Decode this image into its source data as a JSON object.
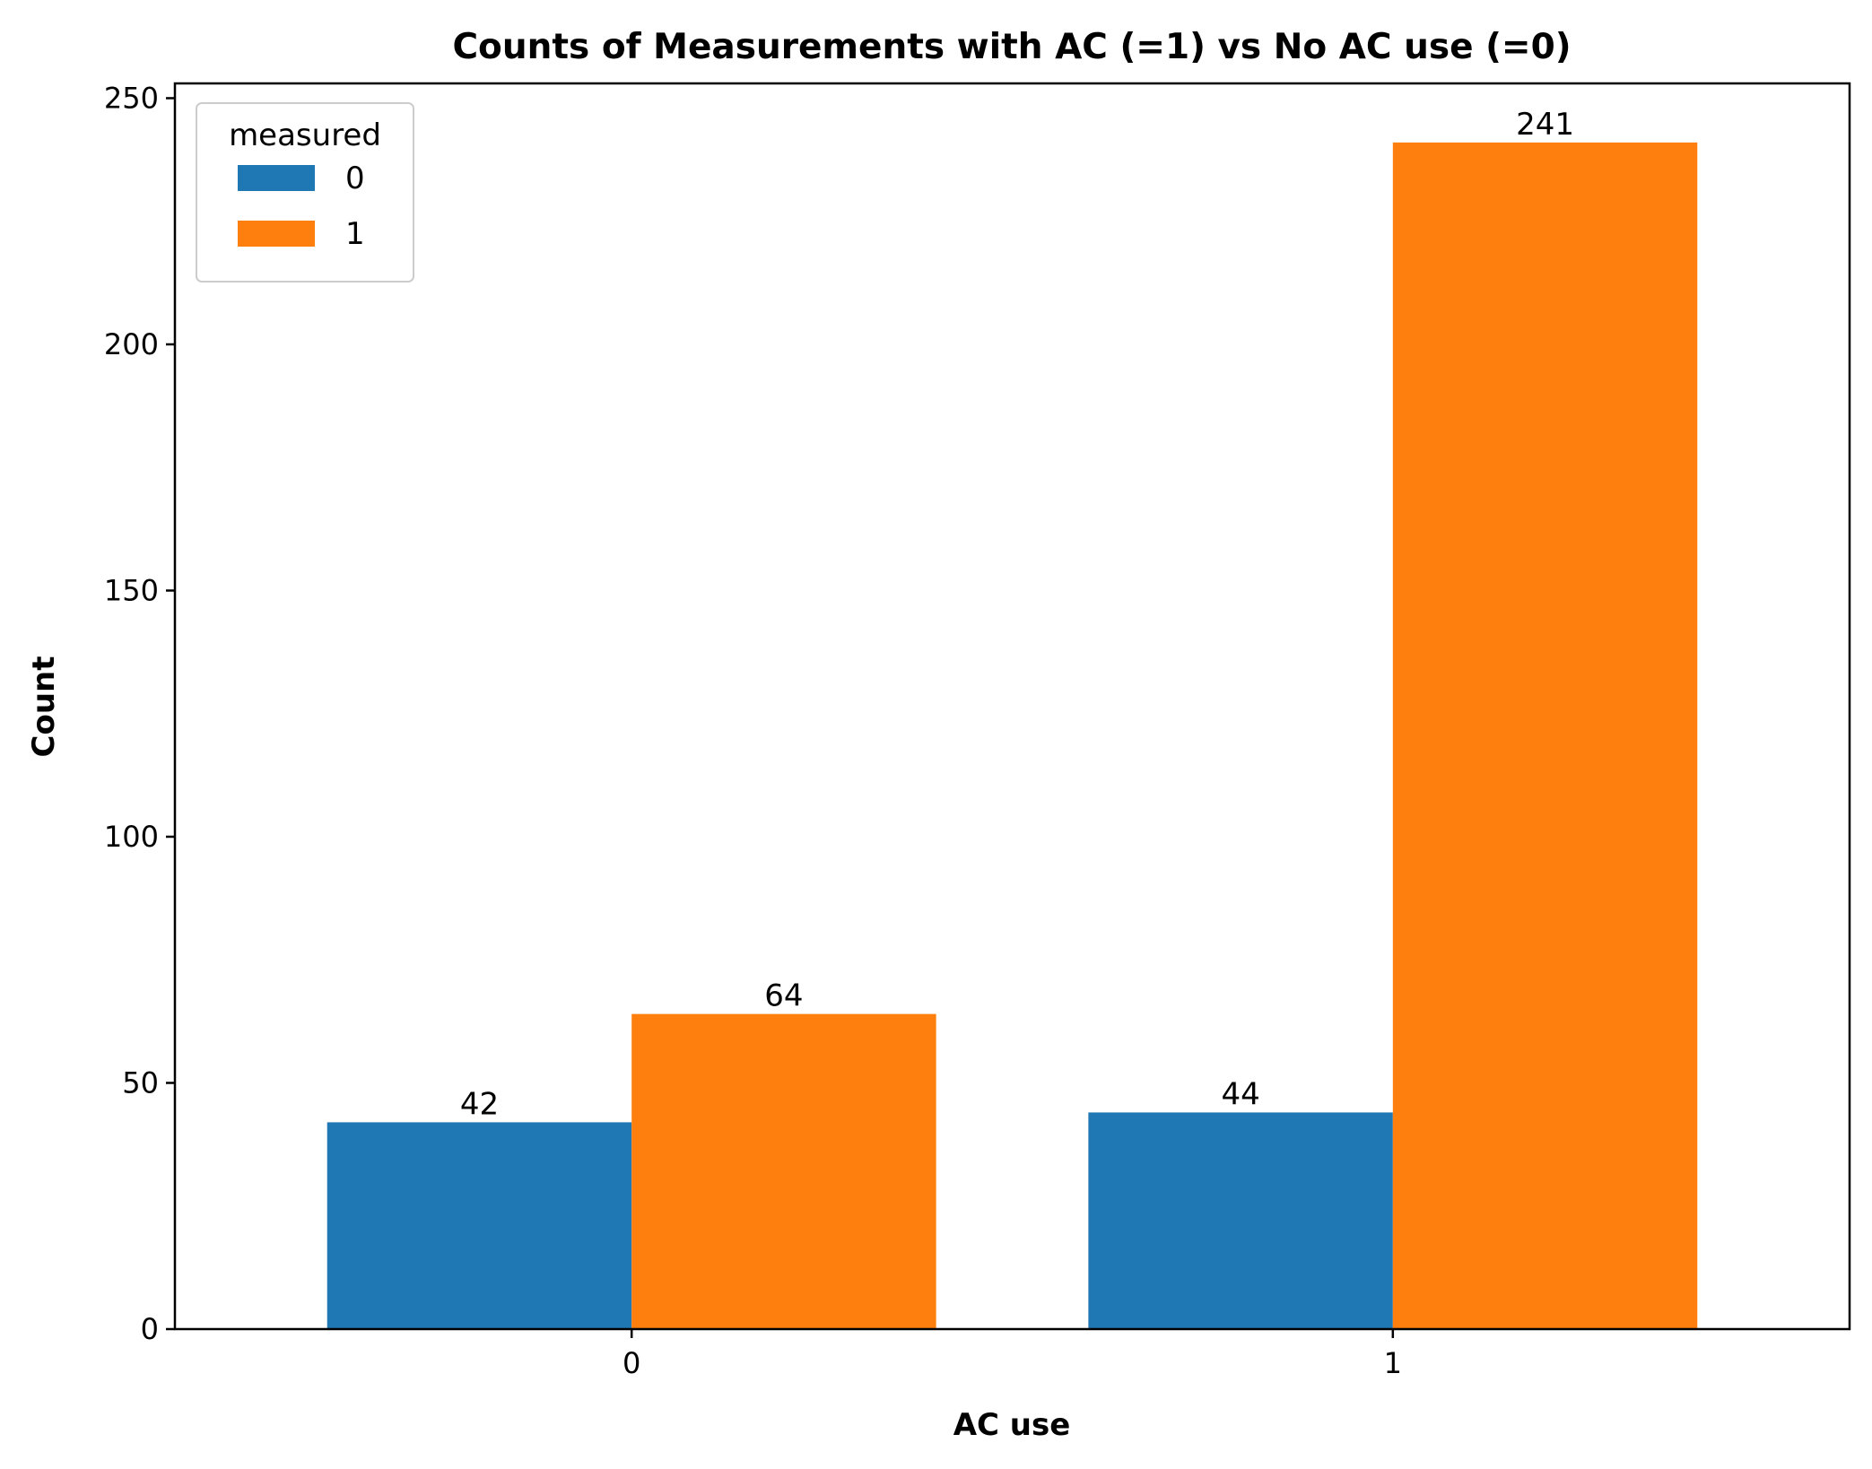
{
  "chart_data": {
    "type": "bar",
    "title": "Counts of Measurements with AC (=1) vs No AC use (=0)",
    "xlabel": "AC use",
    "ylabel": "Count",
    "categories": [
      "0",
      "1"
    ],
    "series": [
      {
        "name": "0",
        "values": [
          42,
          44
        ],
        "color": "#1f77b4"
      },
      {
        "name": "1",
        "values": [
          64,
          241
        ],
        "color": "#ff7f0e"
      }
    ],
    "ylim": [
      0,
      253
    ],
    "yticks": [
      0,
      50,
      100,
      150,
      200,
      250
    ],
    "legend": {
      "title": "measured",
      "placement": "top-left"
    },
    "grid": false,
    "data_labels": true
  }
}
